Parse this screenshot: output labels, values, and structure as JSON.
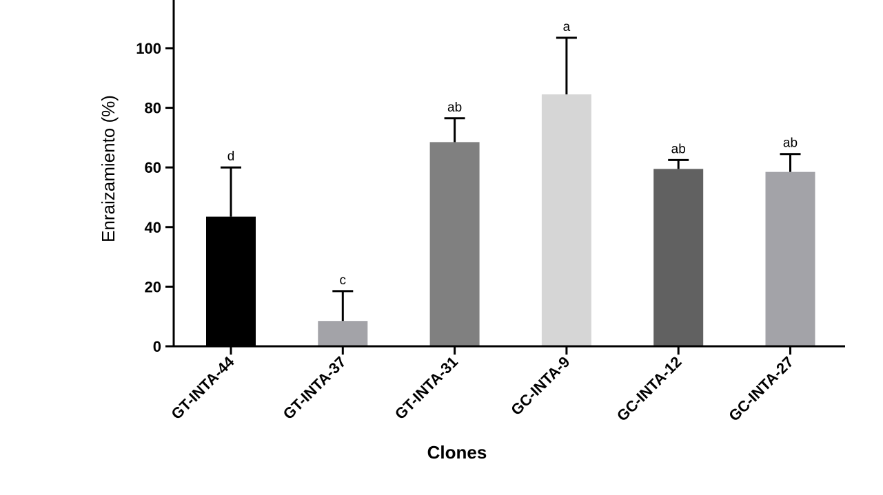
{
  "chart_data": {
    "type": "bar",
    "xlabel": "Clones",
    "ylabel": "Enraizamiento (%)",
    "ylim": [
      0,
      115
    ],
    "yticks": [
      0,
      20,
      40,
      60,
      80,
      100
    ],
    "grid": false,
    "categories": [
      "GT-INTA-44",
      "GT-INTA-37",
      "GT-INTA-31",
      "GC-INTA-9",
      "GC-INTA-12",
      "GC-INTA-27"
    ],
    "values": [
      43.5,
      8.5,
      68.5,
      84.5,
      59.5,
      58.5
    ],
    "errors": [
      16.5,
      10,
      8,
      19,
      3,
      6
    ],
    "significance_labels": [
      "d",
      "c",
      "ab",
      "a",
      "ab",
      "ab"
    ],
    "colors": [
      "#000000",
      "#a3a3a8",
      "#808080",
      "#d6d6d6",
      "#616161",
      "#a3a3a8"
    ]
  }
}
